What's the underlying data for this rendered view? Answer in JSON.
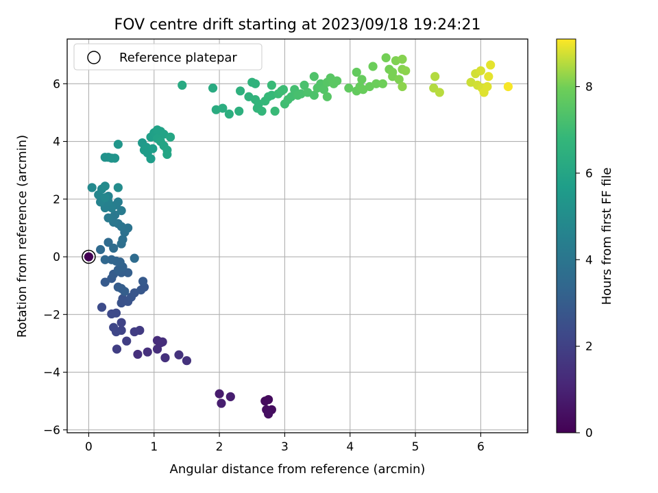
{
  "chart_data": {
    "type": "scatter",
    "title": "FOV centre drift starting at 2023/09/18 19:24:21",
    "xlabel": "Angular distance from reference (arcmin)",
    "ylabel": "Rotation from reference (arcmin)",
    "xlim": [
      -0.33,
      6.72
    ],
    "ylim": [
      -6.1,
      7.55
    ],
    "xticks": [
      0,
      1,
      2,
      3,
      4,
      5,
      6
    ],
    "yticks": [
      -6,
      -4,
      -2,
      0,
      2,
      4,
      6
    ],
    "grid": true,
    "legend": {
      "location": "upper-left",
      "entries": [
        "Reference platepar"
      ]
    },
    "reference_point": {
      "x": 0,
      "y": 0
    },
    "colorbar": {
      "label": "Hours from first FF file",
      "range": [
        0,
        9.1
      ],
      "ticks": [
        0,
        2,
        4,
        6,
        8
      ],
      "colormap": "viridis"
    },
    "series": [
      {
        "points": [
          [
            0.0,
            0.0,
            0.0
          ],
          [
            2.7,
            -5.0,
            0.3
          ],
          [
            2.75,
            -4.95,
            0.3
          ],
          [
            2.72,
            -5.3,
            0.35
          ],
          [
            2.8,
            -5.3,
            0.35
          ],
          [
            2.75,
            -5.45,
            0.4
          ],
          [
            2.0,
            -4.75,
            0.8
          ],
          [
            2.17,
            -4.85,
            0.85
          ],
          [
            2.03,
            -5.08,
            0.85
          ],
          [
            1.05,
            -2.9,
            1.3
          ],
          [
            1.1,
            -2.98,
            1.3
          ],
          [
            1.13,
            -2.95,
            1.35
          ],
          [
            1.05,
            -3.2,
            1.35
          ],
          [
            0.9,
            -3.3,
            1.4
          ],
          [
            0.75,
            -3.38,
            1.4
          ],
          [
            1.17,
            -3.5,
            1.45
          ],
          [
            1.38,
            -3.4,
            1.5
          ],
          [
            1.5,
            -3.6,
            1.5
          ],
          [
            0.78,
            -2.55,
            1.8
          ],
          [
            0.7,
            -2.6,
            1.85
          ],
          [
            0.58,
            -2.92,
            1.9
          ],
          [
            0.43,
            -3.2,
            1.9
          ],
          [
            0.5,
            -2.28,
            2.1
          ],
          [
            0.5,
            -2.55,
            2.1
          ],
          [
            0.38,
            -2.45,
            2.2
          ],
          [
            0.42,
            -2.6,
            2.2
          ],
          [
            0.35,
            -1.98,
            2.3
          ],
          [
            0.42,
            -1.95,
            2.3
          ],
          [
            0.2,
            -1.75,
            2.4
          ],
          [
            0.5,
            -1.6,
            2.6
          ],
          [
            0.52,
            -1.45,
            2.6
          ],
          [
            0.6,
            -1.55,
            2.65
          ],
          [
            0.65,
            -1.4,
            2.7
          ],
          [
            0.7,
            -1.25,
            2.75
          ],
          [
            0.8,
            -1.15,
            2.8
          ],
          [
            0.85,
            -1.05,
            2.8
          ],
          [
            0.83,
            -0.85,
            2.9
          ],
          [
            0.25,
            -0.88,
            2.9
          ],
          [
            0.35,
            -0.75,
            2.95
          ],
          [
            0.38,
            -0.6,
            3.0
          ],
          [
            0.45,
            -1.05,
            3.0
          ],
          [
            0.5,
            -1.1,
            3.05
          ],
          [
            0.55,
            -1.2,
            3.05
          ],
          [
            0.6,
            -0.55,
            3.1
          ],
          [
            0.5,
            -0.55,
            3.1
          ],
          [
            0.45,
            -0.45,
            3.15
          ],
          [
            0.52,
            -0.35,
            3.2
          ],
          [
            0.48,
            -0.18,
            3.25
          ],
          [
            0.42,
            -0.15,
            3.3
          ],
          [
            0.35,
            -0.1,
            3.35
          ],
          [
            0.25,
            -0.1,
            3.4
          ],
          [
            0.18,
            0.25,
            3.5
          ],
          [
            0.3,
            0.5,
            3.55
          ],
          [
            0.38,
            0.3,
            3.6
          ],
          [
            0.7,
            -0.05,
            3.6
          ],
          [
            0.5,
            0.45,
            3.7
          ],
          [
            0.52,
            0.6,
            3.75
          ],
          [
            0.55,
            0.85,
            3.8
          ],
          [
            0.6,
            1.0,
            3.9
          ],
          [
            0.5,
            1.05,
            3.95
          ],
          [
            0.45,
            1.15,
            4.0
          ],
          [
            0.38,
            1.2,
            4.05
          ],
          [
            0.4,
            1.45,
            4.1
          ],
          [
            0.3,
            1.35,
            4.2
          ],
          [
            0.5,
            1.6,
            4.25
          ],
          [
            0.42,
            1.8,
            4.3
          ],
          [
            0.45,
            1.9,
            4.35
          ],
          [
            0.35,
            1.7,
            4.4
          ],
          [
            0.25,
            1.7,
            4.45
          ],
          [
            0.3,
            1.9,
            4.5
          ],
          [
            0.3,
            2.1,
            4.55
          ],
          [
            0.18,
            1.9,
            4.6
          ],
          [
            0.15,
            2.15,
            4.7
          ],
          [
            0.25,
            2.05,
            4.75
          ],
          [
            0.2,
            2.35,
            4.8
          ],
          [
            0.05,
            2.4,
            4.85
          ],
          [
            0.25,
            2.45,
            4.9
          ],
          [
            0.45,
            2.4,
            4.95
          ],
          [
            0.25,
            3.45,
            5.2
          ],
          [
            0.3,
            3.45,
            5.2
          ],
          [
            0.35,
            3.42,
            5.25
          ],
          [
            0.4,
            3.42,
            5.3
          ],
          [
            0.45,
            3.9,
            5.35
          ],
          [
            0.82,
            3.95,
            5.5
          ],
          [
            0.88,
            3.8,
            5.55
          ],
          [
            0.85,
            3.7,
            5.6
          ],
          [
            0.9,
            3.6,
            5.6
          ],
          [
            0.95,
            3.4,
            5.65
          ],
          [
            0.98,
            3.75,
            5.7
          ],
          [
            0.95,
            4.15,
            5.75
          ],
          [
            1.0,
            4.3,
            5.8
          ],
          [
            1.05,
            4.4,
            5.85
          ],
          [
            1.1,
            4.35,
            5.85
          ],
          [
            1.15,
            4.25,
            5.9
          ],
          [
            1.05,
            4.1,
            5.9
          ],
          [
            1.1,
            4.0,
            5.95
          ],
          [
            1.15,
            3.85,
            5.95
          ],
          [
            1.2,
            3.7,
            6.0
          ],
          [
            1.2,
            3.55,
            6.0
          ],
          [
            1.25,
            4.15,
            6.05
          ],
          [
            1.43,
            5.95,
            6.2
          ],
          [
            1.9,
            5.85,
            6.25
          ],
          [
            1.95,
            5.1,
            6.3
          ],
          [
            2.05,
            5.15,
            6.35
          ],
          [
            2.15,
            4.95,
            6.4
          ],
          [
            2.3,
            5.05,
            6.45
          ],
          [
            2.32,
            5.75,
            6.5
          ],
          [
            2.45,
            5.55,
            6.55
          ],
          [
            2.5,
            6.05,
            6.6
          ],
          [
            2.55,
            6.0,
            6.6
          ],
          [
            2.55,
            5.45,
            6.65
          ],
          [
            2.6,
            5.3,
            6.7
          ],
          [
            2.58,
            5.15,
            6.7
          ],
          [
            2.65,
            5.05,
            6.75
          ],
          [
            2.7,
            5.4,
            6.8
          ],
          [
            2.75,
            5.55,
            6.85
          ],
          [
            2.8,
            5.6,
            6.85
          ],
          [
            2.8,
            5.95,
            6.9
          ],
          [
            2.85,
            5.05,
            6.9
          ],
          [
            2.9,
            5.65,
            6.95
          ],
          [
            2.95,
            5.75,
            7.0
          ],
          [
            2.98,
            5.8,
            7.0
          ],
          [
            3.0,
            5.3,
            7.05
          ],
          [
            3.05,
            5.45,
            7.1
          ],
          [
            3.1,
            5.55,
            7.1
          ],
          [
            3.15,
            5.8,
            7.15
          ],
          [
            3.2,
            5.6,
            7.2
          ],
          [
            3.25,
            5.65,
            7.2
          ],
          [
            3.3,
            5.95,
            7.25
          ],
          [
            3.35,
            5.7,
            7.3
          ],
          [
            3.45,
            5.6,
            7.3
          ],
          [
            3.45,
            6.25,
            7.35
          ],
          [
            3.5,
            5.85,
            7.4
          ],
          [
            3.55,
            6.0,
            7.4
          ],
          [
            3.6,
            5.8,
            7.45
          ],
          [
            3.65,
            6.05,
            7.5
          ],
          [
            3.65,
            5.55,
            7.5
          ],
          [
            3.7,
            6.2,
            7.55
          ],
          [
            3.75,
            6.0,
            7.6
          ],
          [
            3.8,
            6.1,
            7.6
          ],
          [
            3.98,
            5.85,
            7.7
          ],
          [
            4.1,
            5.75,
            7.75
          ],
          [
            4.1,
            6.4,
            7.75
          ],
          [
            4.15,
            5.9,
            7.8
          ],
          [
            4.18,
            6.15,
            7.8
          ],
          [
            4.2,
            5.8,
            7.85
          ],
          [
            4.3,
            5.9,
            7.85
          ],
          [
            4.35,
            6.6,
            7.9
          ],
          [
            4.4,
            6.0,
            7.9
          ],
          [
            4.5,
            6.0,
            7.95
          ],
          [
            4.55,
            6.9,
            8.0
          ],
          [
            4.6,
            6.5,
            8.0
          ],
          [
            4.65,
            6.25,
            8.05
          ],
          [
            4.65,
            6.4,
            8.05
          ],
          [
            4.7,
            6.8,
            8.1
          ],
          [
            4.75,
            6.15,
            8.1
          ],
          [
            4.8,
            6.5,
            8.15
          ],
          [
            4.8,
            6.85,
            8.15
          ],
          [
            4.85,
            6.45,
            8.2
          ],
          [
            4.8,
            5.9,
            8.2
          ],
          [
            5.3,
            6.25,
            8.5
          ],
          [
            5.28,
            5.85,
            8.5
          ],
          [
            5.37,
            5.7,
            8.55
          ],
          [
            5.85,
            6.05,
            8.7
          ],
          [
            5.92,
            6.35,
            8.75
          ],
          [
            5.95,
            5.95,
            8.75
          ],
          [
            6.0,
            6.45,
            8.8
          ],
          [
            6.02,
            5.85,
            8.8
          ],
          [
            6.05,
            5.7,
            8.85
          ],
          [
            6.1,
            5.9,
            8.85
          ],
          [
            6.12,
            6.25,
            8.9
          ],
          [
            6.15,
            6.65,
            8.9
          ],
          [
            6.42,
            5.9,
            9.05
          ]
        ]
      }
    ]
  }
}
